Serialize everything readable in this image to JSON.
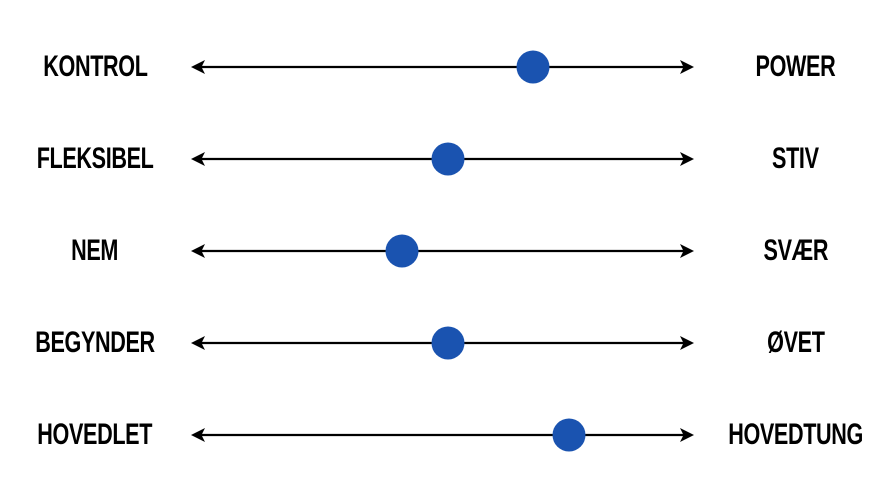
{
  "page": {
    "background_color": "#ffffff",
    "text_color": "#000000"
  },
  "chart_data": {
    "type": "scatter",
    "subtype": "bipolar-slider-scales",
    "title": "",
    "axis_range_pct": [
      0,
      100
    ],
    "line_color": "#000000",
    "dot_color": "#1a53b0",
    "scales": [
      {
        "left_label": "KONTROL",
        "right_label": "POWER",
        "value_pct": 68
      },
      {
        "left_label": "FLEKSIBEL",
        "right_label": "STIV",
        "value_pct": 51
      },
      {
        "left_label": "NEM",
        "right_label": "SVÆR",
        "value_pct": 42
      },
      {
        "left_label": "BEGYNDER",
        "right_label": "ØVET",
        "value_pct": 51
      },
      {
        "left_label": "HOVEDLET",
        "right_label": "HOVEDTUNG",
        "value_pct": 75
      }
    ]
  }
}
